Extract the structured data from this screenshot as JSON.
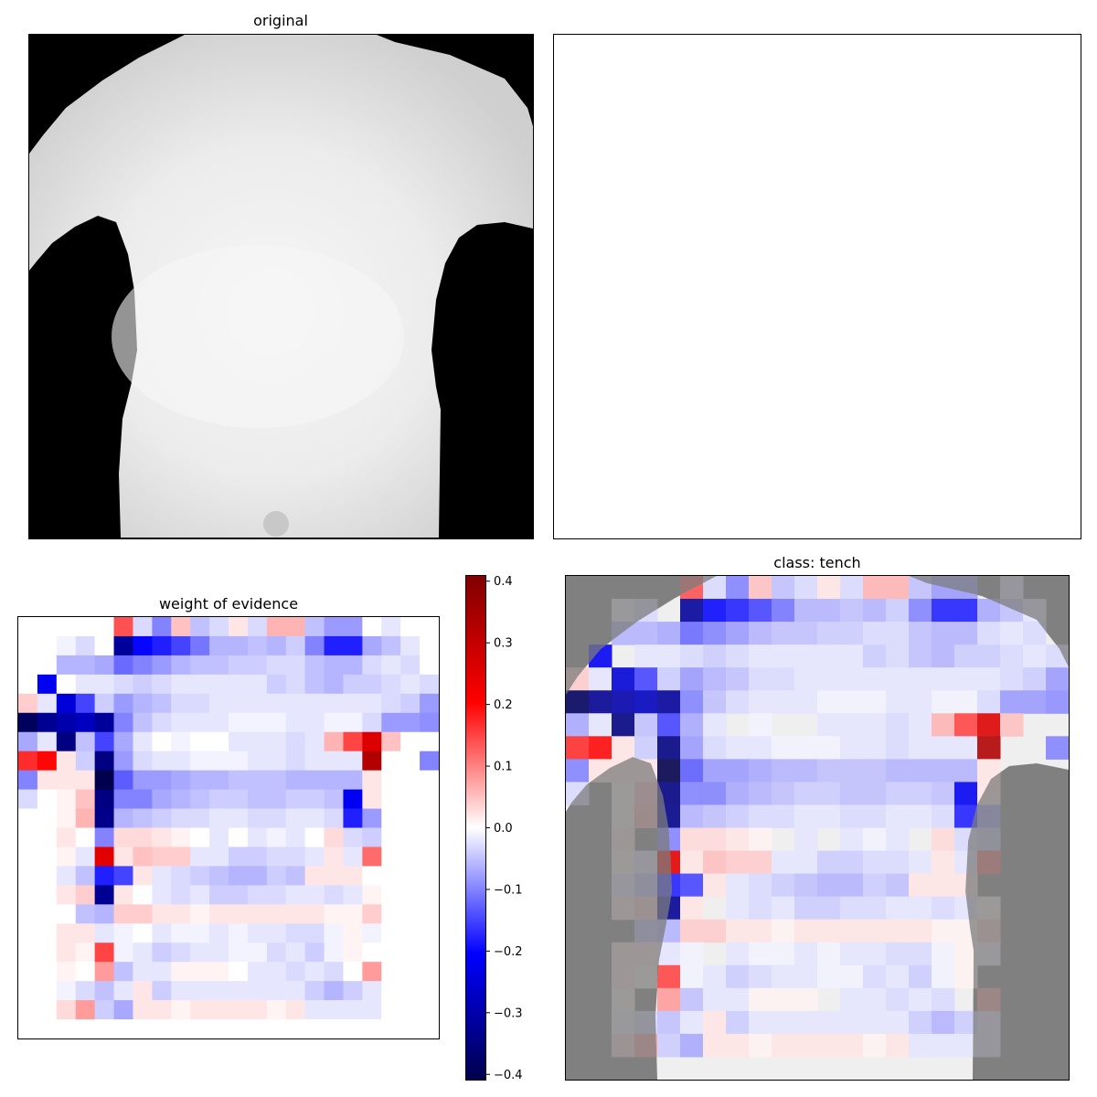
{
  "panels": {
    "original": {
      "title": "original"
    },
    "blank": {
      "title": ""
    },
    "woe": {
      "title": "weight of evidence"
    },
    "overlay": {
      "title": "class: tench"
    }
  },
  "colors": {
    "background_mask": "#000000",
    "overlay_mask": "#808080",
    "body_light": "#f2f2f2",
    "body_shade": "#cfcfcf"
  },
  "chart_data": [
    {
      "type": "heatmap",
      "title": "weight of evidence",
      "rows": 22,
      "cols": 22,
      "colormap": "seismic",
      "clim": [
        -0.41,
        0.41
      ],
      "colorbar_ticks": [
        0.4,
        0.3,
        0.2,
        0.1,
        0.0,
        -0.1,
        -0.2,
        -0.3,
        -0.4
      ],
      "colorbar_tick_labels": [
        "0.4",
        "0.3",
        "0.2",
        "0.1",
        "0.0",
        "−0.1",
        "−0.2",
        "−0.3",
        "−0.4"
      ],
      "values": [
        [
          0,
          0,
          0,
          0,
          0,
          0.14,
          -0.03,
          -0.1,
          0.05,
          -0.05,
          -0.03,
          0.02,
          -0.03,
          0.06,
          0.06,
          -0.05,
          -0.08,
          -0.08,
          0,
          -0.02,
          0,
          0
        ],
        [
          0,
          0,
          -0.01,
          -0.03,
          0,
          -0.32,
          -0.2,
          -0.18,
          -0.15,
          -0.11,
          -0.06,
          -0.06,
          -0.05,
          -0.06,
          -0.04,
          -0.1,
          -0.18,
          -0.18,
          -0.07,
          -0.05,
          -0.02,
          0
        ],
        [
          0,
          0,
          -0.06,
          -0.06,
          -0.07,
          -0.12,
          -0.1,
          -0.08,
          -0.06,
          -0.05,
          -0.05,
          -0.04,
          -0.04,
          -0.03,
          -0.03,
          -0.05,
          -0.06,
          -0.06,
          -0.03,
          -0.02,
          -0.03,
          0
        ],
        [
          0,
          -0.22,
          0,
          -0.02,
          -0.02,
          -0.03,
          -0.04,
          -0.03,
          -0.02,
          -0.02,
          -0.02,
          -0.02,
          -0.02,
          -0.04,
          -0.03,
          -0.05,
          -0.06,
          -0.04,
          -0.04,
          -0.03,
          -0.02,
          -0.03
        ],
        [
          0.04,
          -0.02,
          -0.25,
          -0.15,
          -0.04,
          -0.08,
          -0.06,
          -0.05,
          -0.03,
          -0.03,
          -0.02,
          -0.02,
          -0.02,
          -0.02,
          -0.02,
          -0.02,
          -0.02,
          -0.02,
          -0.02,
          -0.03,
          -0.04,
          -0.08
        ],
        [
          -0.39,
          -0.33,
          -0.3,
          -0.28,
          -0.32,
          -0.1,
          -0.05,
          -0.03,
          -0.02,
          -0.02,
          -0.02,
          -0.01,
          -0.01,
          -0.01,
          -0.02,
          -0.02,
          -0.01,
          -0.01,
          -0.03,
          -0.08,
          -0.08,
          -0.09
        ],
        [
          -0.07,
          -0.02,
          -0.35,
          -0.05,
          -0.15,
          -0.07,
          -0.02,
          0,
          -0.01,
          0,
          0,
          -0.02,
          -0.02,
          -0.02,
          -0.03,
          -0.02,
          0.06,
          0.15,
          0.26,
          0.05,
          0,
          0
        ],
        [
          0.17,
          0.2,
          0.02,
          -0.04,
          -0.35,
          -0.08,
          -0.03,
          -0.02,
          -0.02,
          -0.01,
          -0.01,
          -0.01,
          -0.02,
          -0.02,
          -0.03,
          -0.02,
          -0.02,
          -0.02,
          0.33,
          0,
          0,
          -0.1
        ],
        [
          -0.1,
          0.02,
          0.02,
          0.02,
          -0.41,
          -0.13,
          -0.08,
          -0.08,
          -0.07,
          -0.06,
          -0.06,
          -0.05,
          -0.05,
          -0.05,
          -0.06,
          -0.06,
          -0.06,
          -0.06,
          0.02,
          0,
          0,
          0
        ],
        [
          -0.03,
          0,
          0.01,
          0.05,
          -0.35,
          -0.1,
          -0.1,
          -0.07,
          -0.06,
          -0.05,
          -0.04,
          -0.04,
          -0.05,
          -0.05,
          -0.04,
          -0.04,
          -0.05,
          -0.22,
          0.02,
          0,
          0,
          0
        ],
        [
          0,
          0,
          0.01,
          0.06,
          -0.34,
          -0.06,
          -0.05,
          -0.04,
          -0.03,
          -0.03,
          -0.02,
          -0.02,
          -0.03,
          -0.03,
          -0.02,
          -0.02,
          -0.03,
          -0.18,
          -0.08,
          0,
          0,
          0
        ],
        [
          0,
          0,
          0.02,
          0,
          -0.1,
          0.03,
          0.03,
          0.02,
          0.01,
          0,
          -0.02,
          0,
          -0.02,
          -0.01,
          -0.02,
          0,
          0.03,
          -0.03,
          -0.04,
          0,
          0,
          0
        ],
        [
          0,
          0,
          0.01,
          -0.02,
          0.25,
          0.02,
          0.05,
          0.04,
          0.04,
          -0.02,
          -0.02,
          -0.04,
          -0.04,
          -0.03,
          -0.03,
          -0.02,
          0.02,
          -0.02,
          0.12,
          0,
          0,
          0
        ],
        [
          0,
          0,
          -0.02,
          -0.05,
          -0.18,
          -0.15,
          0.02,
          -0.02,
          -0.03,
          -0.04,
          -0.05,
          -0.06,
          -0.06,
          -0.04,
          -0.05,
          0.02,
          0.02,
          0.02,
          0,
          0,
          0,
          0
        ],
        [
          0,
          0,
          0.02,
          0.04,
          -0.33,
          0.02,
          0,
          -0.02,
          -0.03,
          -0.02,
          -0.04,
          -0.04,
          -0.03,
          -0.03,
          -0.02,
          -0.02,
          -0.03,
          -0.02,
          0.01,
          0,
          0,
          0
        ],
        [
          0,
          0,
          0,
          -0.05,
          -0.06,
          0.04,
          0.04,
          0.02,
          0.02,
          0.01,
          0.02,
          0.02,
          0.02,
          0.02,
          0.02,
          0.02,
          0.01,
          0.01,
          0.04,
          0,
          0,
          0
        ],
        [
          0,
          0,
          0.02,
          0.02,
          -0.02,
          -0.01,
          0,
          -0.02,
          -0.01,
          -0.01,
          -0.02,
          -0.01,
          -0.02,
          -0.02,
          -0.03,
          -0.03,
          -0.01,
          0.01,
          -0.01,
          0,
          0,
          0
        ],
        [
          0,
          0,
          0.02,
          0.01,
          0.15,
          -0.01,
          -0.02,
          -0.04,
          -0.03,
          -0.02,
          -0.02,
          -0.01,
          -0.01,
          -0.03,
          -0.02,
          -0.04,
          -0.01,
          0.01,
          0,
          0,
          0,
          0
        ],
        [
          0,
          0,
          0.01,
          0,
          0.08,
          -0.05,
          -0.02,
          -0.02,
          0.01,
          0.01,
          0.01,
          0,
          -0.02,
          -0.02,
          -0.03,
          -0.02,
          -0.03,
          0,
          0.08,
          0,
          0,
          0
        ],
        [
          0,
          0,
          -0.01,
          -0.03,
          -0.05,
          -0.02,
          0.02,
          -0.04,
          -0.02,
          -0.02,
          -0.02,
          -0.02,
          -0.02,
          -0.02,
          -0.02,
          -0.04,
          -0.06,
          -0.04,
          -0.02,
          0,
          0,
          0
        ],
        [
          0,
          0,
          0.03,
          0.08,
          -0.04,
          -0.07,
          0.02,
          0.02,
          0.01,
          0.02,
          0.02,
          0.02,
          0.02,
          0.01,
          0.02,
          -0.02,
          -0.02,
          -0.02,
          -0.02,
          0,
          0,
          0
        ],
        [
          0,
          0,
          0,
          0,
          0,
          0,
          0,
          0,
          0,
          0,
          0,
          0,
          0,
          0,
          0,
          0,
          0,
          0,
          0,
          0,
          0,
          0
        ]
      ]
    }
  ]
}
